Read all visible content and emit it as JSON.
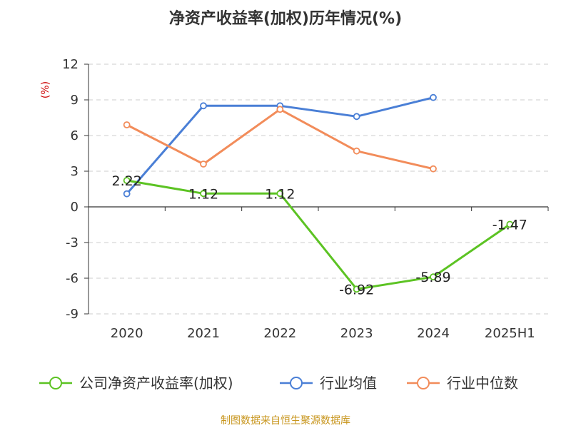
{
  "chart_data": {
    "type": "line",
    "title": "净资产收益率(加权)历年情况(%)",
    "ylabel": "(%)",
    "xlabel": "",
    "categories": [
      "2020",
      "2021",
      "2022",
      "2023",
      "2024",
      "2025H1"
    ],
    "ylim": [
      -9,
      12
    ],
    "yticks": [
      12,
      9,
      6,
      3,
      0,
      -3,
      -6,
      -9
    ],
    "grid": true,
    "legend_position": "bottom",
    "series": [
      {
        "name": "公司净资产收益率(加权)",
        "color": "#5cc323",
        "values": [
          2.22,
          1.12,
          1.12,
          -6.92,
          -5.89,
          -1.47
        ],
        "labels": [
          "2.22",
          "1.12",
          "1.12",
          "-6.92",
          "-5.89",
          "-1.47"
        ]
      },
      {
        "name": "行业均值",
        "color": "#4a7fd6",
        "values": [
          1.1,
          8.5,
          8.5,
          7.6,
          9.2,
          null
        ]
      },
      {
        "name": "行业中位数",
        "color": "#f28c5a",
        "values": [
          6.9,
          3.6,
          8.2,
          4.7,
          3.2,
          null
        ]
      }
    ],
    "source": "制图数据来自恒生聚源数据库"
  }
}
